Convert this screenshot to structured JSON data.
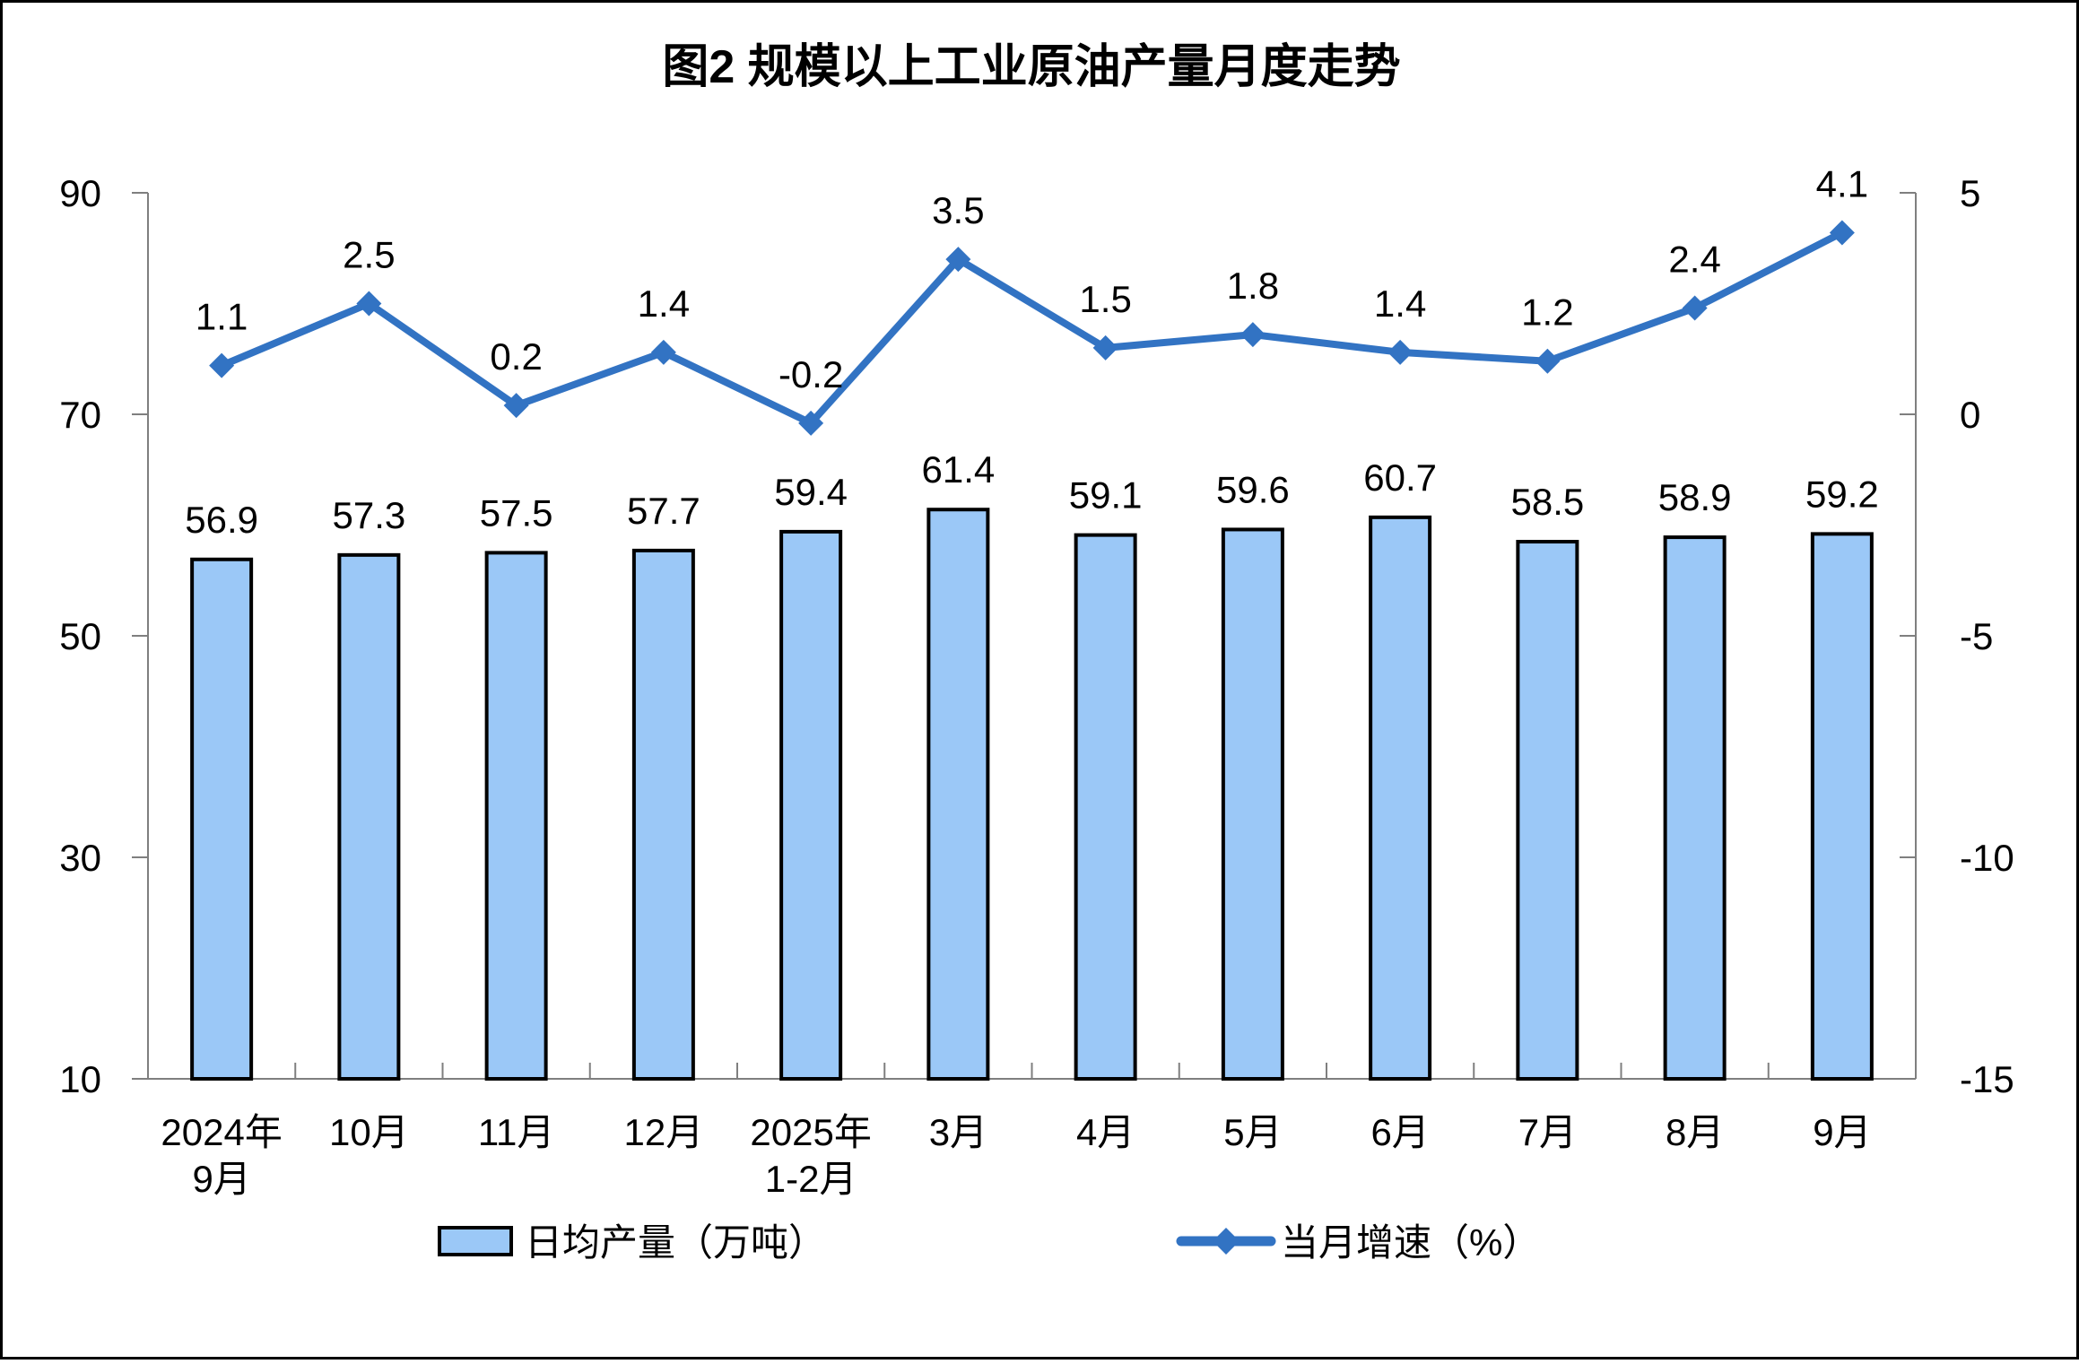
{
  "chart_data": {
    "type": "combo-bar-line",
    "title": "图2 规模以上工业原油产量月度走势",
    "categories": [
      [
        "2024年",
        "9月"
      ],
      [
        "10月"
      ],
      [
        "11月"
      ],
      [
        "12月"
      ],
      [
        "2025年",
        "1-2月"
      ],
      [
        "3月"
      ],
      [
        "4月"
      ],
      [
        "5月"
      ],
      [
        "6月"
      ],
      [
        "7月"
      ],
      [
        "8月"
      ],
      [
        "9月"
      ]
    ],
    "series": [
      {
        "name": "日均产量（万吨）",
        "type": "bar",
        "axis": "left",
        "values": [
          56.9,
          57.3,
          57.5,
          57.7,
          59.4,
          61.4,
          59.1,
          59.6,
          60.7,
          58.5,
          58.9,
          59.2
        ]
      },
      {
        "name": "当月增速（%）",
        "type": "line",
        "axis": "right",
        "values": [
          1.1,
          2.5,
          0.2,
          1.4,
          -0.2,
          3.5,
          1.5,
          1.8,
          1.4,
          1.2,
          2.4,
          4.1
        ]
      }
    ],
    "left_axis": {
      "min": 10,
      "max": 90,
      "ticks": [
        90,
        70,
        50,
        30,
        10
      ]
    },
    "right_axis": {
      "min": -15,
      "max": 5,
      "ticks": [
        5,
        0,
        -5,
        -10,
        -15
      ]
    },
    "legend_position": "bottom",
    "grid": false
  },
  "colors": {
    "bar_fill": "#9BC8F7",
    "bar_border": "#000000",
    "line": "#3273C3",
    "axis": "#7F7F7F",
    "text": "#000000",
    "background": "#FFFFFF",
    "frame_border": "#000000"
  }
}
